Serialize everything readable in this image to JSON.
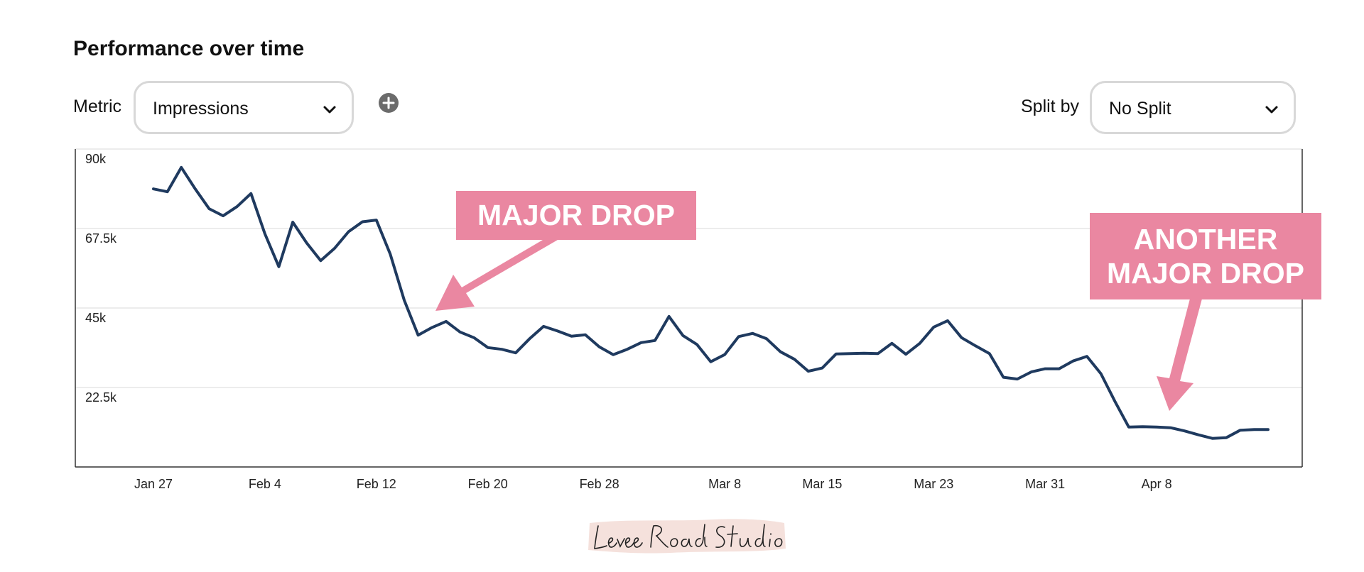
{
  "header": {
    "title": "Performance over time",
    "metric_label": "Metric",
    "metric_value": "Impressions",
    "split_label": "Split by",
    "split_value": "No Split"
  },
  "icons": {
    "add": "plus-circle-icon",
    "dropdown": "chevron-down-icon"
  },
  "annotations": {
    "drop_1": "MAJOR DROP",
    "drop_2_line1": "ANOTHER",
    "drop_2_line2": "MAJOR DROP"
  },
  "watermark": "Levee Road Studio",
  "colors": {
    "line": "#1f3a5f",
    "callout": "#ea87a1",
    "watermark_bg": "#f3dcd6"
  },
  "chart_data": {
    "type": "line",
    "title": "Performance over time",
    "xlabel": "",
    "ylabel": "",
    "metric": "Impressions",
    "x_tick_labels": [
      "Jan 27",
      "Feb 4",
      "Feb 12",
      "Feb 20",
      "Feb 28",
      "Mar 8",
      "Mar 15",
      "Mar 23",
      "Mar 31",
      "Apr 8"
    ],
    "y_tick_labels": [
      "90k",
      "67.5k",
      "45k",
      "22.5k"
    ],
    "ylim": [
      0,
      90000
    ],
    "grid": true,
    "x": [
      "Jan 27",
      "Jan 28",
      "Jan 29",
      "Jan 30",
      "Jan 31",
      "Feb 1",
      "Feb 2",
      "Feb 3",
      "Feb 4",
      "Feb 5",
      "Feb 6",
      "Feb 7",
      "Feb 8",
      "Feb 9",
      "Feb 10",
      "Feb 11",
      "Feb 12",
      "Feb 13",
      "Feb 14",
      "Feb 15",
      "Feb 16",
      "Feb 17",
      "Feb 18",
      "Feb 19",
      "Feb 20",
      "Feb 21",
      "Feb 22",
      "Feb 23",
      "Feb 24",
      "Feb 25",
      "Feb 26",
      "Feb 27",
      "Feb 28",
      "Feb 29",
      "Mar 1",
      "Mar 2",
      "Mar 3",
      "Mar 4",
      "Mar 5",
      "Mar 6",
      "Mar 7",
      "Mar 8",
      "Mar 9",
      "Mar 10",
      "Mar 11",
      "Mar 12",
      "Mar 13",
      "Mar 14",
      "Mar 15",
      "Mar 16",
      "Mar 17",
      "Mar 18",
      "Mar 19",
      "Mar 20",
      "Mar 21",
      "Mar 22",
      "Mar 23",
      "Mar 24",
      "Mar 25",
      "Mar 26",
      "Mar 27",
      "Mar 28",
      "Mar 29",
      "Mar 30",
      "Mar 31",
      "Apr 1",
      "Apr 2",
      "Apr 3",
      "Apr 4",
      "Apr 5",
      "Apr 6",
      "Apr 7",
      "Apr 8",
      "Apr 9",
      "Apr 10",
      "Apr 11",
      "Apr 12",
      "Apr 13",
      "Apr 14",
      "Apr 15",
      "Apr 16"
    ],
    "series": [
      {
        "values": [
          78700,
          77900,
          84800,
          78700,
          73100,
          71100,
          73700,
          77400,
          66000,
          56700,
          69300,
          63400,
          58400,
          61900,
          66600,
          69400,
          69900,
          60200,
          47200,
          37300,
          39500,
          41200,
          38200,
          36600,
          33800,
          33300,
          32300,
          36300,
          39800,
          38500,
          37000,
          37400,
          34000,
          31800,
          33300,
          35200,
          35800,
          42600,
          37200,
          34700,
          29800,
          31800,
          36900,
          37800,
          36300,
          32600,
          30500,
          27100,
          28000,
          32000,
          32100,
          32200,
          32100,
          35000,
          31900,
          35000,
          39600,
          41400,
          36600,
          34300,
          32100,
          25400,
          24900,
          26900,
          27800,
          27800,
          30000,
          31300,
          26400,
          18600,
          11300,
          11400,
          11300,
          11100,
          10200,
          9100,
          8100,
          8300,
          10400,
          10600,
          10600
        ]
      }
    ]
  }
}
